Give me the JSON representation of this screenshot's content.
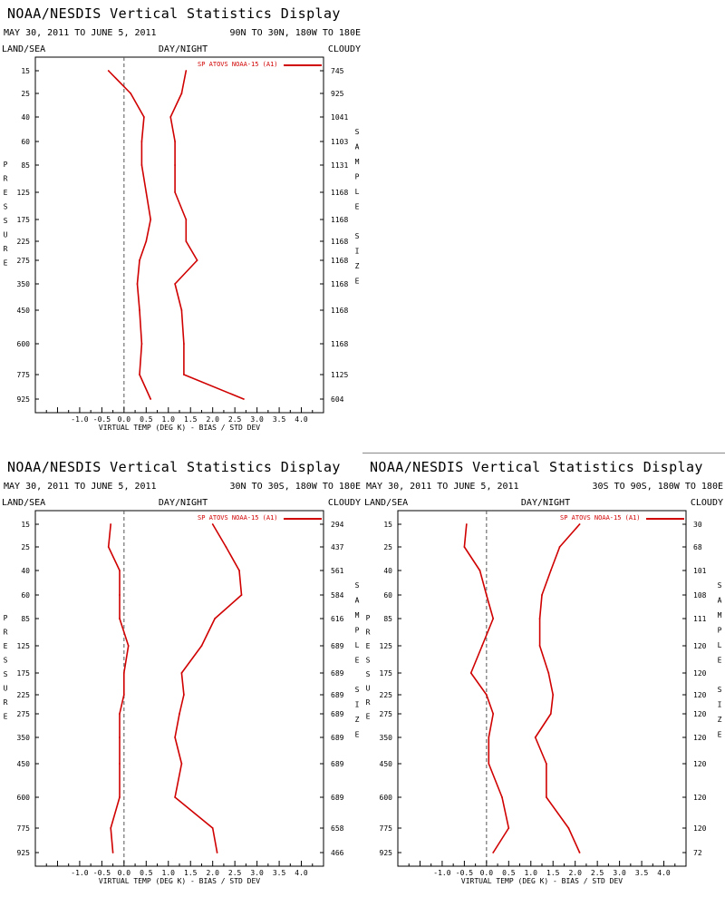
{
  "chart_data": [
    {
      "type": "line",
      "title": "NOAA/NESDIS Vertical Statistics Display",
      "date_range": "MAY 30, 2011 TO JUNE 5, 2011",
      "region": "90N TO 30N, 180W TO 180E",
      "surface": "LAND/SEA",
      "time_of_day": "DAY/NIGHT",
      "sky": "CLOUDY",
      "xlabel": "VIRTUAL TEMP (DEG K) - BIAS / STD DEV",
      "ylabel": "PRESSURE",
      "right_axis_label": "SAMPLE SIZE",
      "legend": "SP ATOVS NOAA-15 (A1)",
      "xlim": [
        -2.0,
        4.5
      ],
      "xticks": [
        "-1.0",
        "-0.5",
        "0.0",
        "0.5",
        "1.0",
        "1.5",
        "2.0",
        "2.5",
        "3.0",
        "3.5",
        "4.0"
      ],
      "pressure_levels": [
        "15",
        "25",
        "40",
        "60",
        "85",
        "125",
        "175",
        "225",
        "275",
        "350",
        "450",
        "600",
        "775",
        "925"
      ],
      "sample_size": [
        "745",
        "925",
        "1041",
        "1103",
        "1131",
        "1168",
        "1168",
        "1168",
        "1168",
        "1168",
        "1168",
        "1168",
        "1125",
        "604"
      ],
      "series": [
        {
          "values": [
            -0.35,
            0.15,
            0.45,
            0.4,
            0.4,
            0.5,
            0.6,
            0.5,
            0.35,
            0.3,
            0.35,
            0.4,
            0.35,
            0.6
          ]
        },
        {
          "values": [
            1.4,
            1.3,
            1.05,
            1.15,
            1.15,
            1.15,
            1.4,
            1.4,
            1.65,
            1.15,
            1.3,
            1.35,
            1.35,
            2.7
          ]
        }
      ]
    },
    {
      "type": "line",
      "title": "NOAA/NESDIS Vertical Statistics Display",
      "date_range": "MAY 30, 2011 TO JUNE 5, 2011",
      "region": "30N TO 30S, 180W TO 180E",
      "surface": "LAND/SEA",
      "time_of_day": "DAY/NIGHT",
      "sky": "CLOUDY",
      "xlabel": "VIRTUAL TEMP (DEG K) - BIAS / STD DEV",
      "ylabel": "PRESSURE",
      "right_axis_label": "SAMPLE SIZE",
      "legend": "SP ATOVS NOAA-15 (A1)",
      "xlim": [
        -2.0,
        4.5
      ],
      "xticks": [
        "-1.0",
        "-0.5",
        "0.0",
        "0.5",
        "1.0",
        "1.5",
        "2.0",
        "2.5",
        "3.0",
        "3.5",
        "4.0"
      ],
      "pressure_levels": [
        "15",
        "25",
        "40",
        "60",
        "85",
        "125",
        "175",
        "225",
        "275",
        "350",
        "450",
        "600",
        "775",
        "925"
      ],
      "sample_size": [
        "294",
        "437",
        "561",
        "584",
        "616",
        "689",
        "689",
        "689",
        "689",
        "689",
        "689",
        "689",
        "658",
        "466"
      ],
      "series": [
        {
          "values": [
            -0.3,
            -0.35,
            -0.1,
            -0.1,
            -0.1,
            0.1,
            0.0,
            0.0,
            -0.1,
            -0.1,
            -0.1,
            -0.1,
            -0.3,
            -0.25
          ]
        },
        {
          "values": [
            2.0,
            2.3,
            2.6,
            2.65,
            2.05,
            1.75,
            1.3,
            1.35,
            1.25,
            1.15,
            1.3,
            1.15,
            2.0,
            2.1
          ]
        }
      ]
    },
    {
      "type": "line",
      "title": "NOAA/NESDIS Vertical Statistics Display",
      "date_range": "MAY 30, 2011 TO JUNE 5, 2011",
      "region": "30S TO 90S, 180W TO 180E",
      "surface": "LAND/SEA",
      "time_of_day": "DAY/NIGHT",
      "sky": "CLOUDY",
      "xlabel": "VIRTUAL TEMP (DEG K) - BIAS / STD DEV",
      "ylabel": "PRESSURE",
      "right_axis_label": "SAMPLE SIZE",
      "legend": "SP ATOVS NOAA-15 (A1)",
      "xlim": [
        -2.0,
        4.5
      ],
      "xticks": [
        "-1.0",
        "-0.5",
        "0.0",
        "0.5",
        "1.0",
        "1.5",
        "2.0",
        "2.5",
        "3.0",
        "3.5",
        "4.0"
      ],
      "pressure_levels": [
        "15",
        "25",
        "40",
        "60",
        "85",
        "125",
        "175",
        "225",
        "275",
        "350",
        "450",
        "600",
        "775",
        "925"
      ],
      "sample_size": [
        "30",
        "68",
        "101",
        "108",
        "111",
        "120",
        "120",
        "120",
        "120",
        "120",
        "120",
        "120",
        "120",
        "72"
      ],
      "series": [
        {
          "values": [
            -0.45,
            -0.5,
            -0.15,
            0.0,
            0.15,
            -0.1,
            -0.35,
            0.0,
            0.15,
            0.05,
            0.05,
            0.35,
            0.5,
            0.15
          ]
        },
        {
          "values": [
            2.1,
            1.65,
            1.45,
            1.25,
            1.2,
            1.2,
            1.4,
            1.5,
            1.45,
            1.1,
            1.35,
            1.35,
            1.85,
            2.1
          ]
        }
      ]
    }
  ],
  "colors": {
    "series": "#d00000",
    "zero_line": "#555555",
    "axes": "#000000",
    "divider": "#888888"
  }
}
